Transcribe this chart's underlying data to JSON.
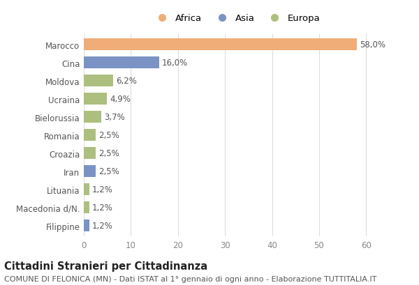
{
  "categories": [
    "Marocco",
    "Cina",
    "Moldova",
    "Ucraina",
    "Bielorussia",
    "Romania",
    "Croazia",
    "Iran",
    "Lituania",
    "Macedonia d/N.",
    "Filippine"
  ],
  "values": [
    58.0,
    16.0,
    6.2,
    4.9,
    3.7,
    2.5,
    2.5,
    2.5,
    1.2,
    1.2,
    1.2
  ],
  "labels": [
    "58,0%",
    "16,0%",
    "6,2%",
    "4,9%",
    "3,7%",
    "2,5%",
    "2,5%",
    "2,5%",
    "1,2%",
    "1,2%",
    "1,2%"
  ],
  "continents": [
    "Africa",
    "Asia",
    "Europa",
    "Europa",
    "Europa",
    "Europa",
    "Europa",
    "Asia",
    "Europa",
    "Europa",
    "Asia"
  ],
  "colors": {
    "Africa": "#F0AD78",
    "Asia": "#7B93C4",
    "Europa": "#ADBF7E"
  },
  "legend_labels": [
    "Africa",
    "Asia",
    "Europa"
  ],
  "title": "Cittadini Stranieri per Cittadinanza",
  "subtitle": "COMUNE DI FELONICA (MN) - Dati ISTAT al 1° gennaio di ogni anno - Elaborazione TUTTITALIA.IT",
  "xlim": [
    0,
    65
  ],
  "xticks": [
    0,
    10,
    20,
    30,
    40,
    50,
    60
  ],
  "background_color": "#FFFFFF",
  "plot_bg_color": "#FFFFFF",
  "grid_color": "#DDDDDD",
  "bar_height": 0.65,
  "label_fontsize": 8.5,
  "title_fontsize": 10.5,
  "subtitle_fontsize": 8,
  "tick_fontsize": 8.5,
  "legend_fontsize": 9.5
}
